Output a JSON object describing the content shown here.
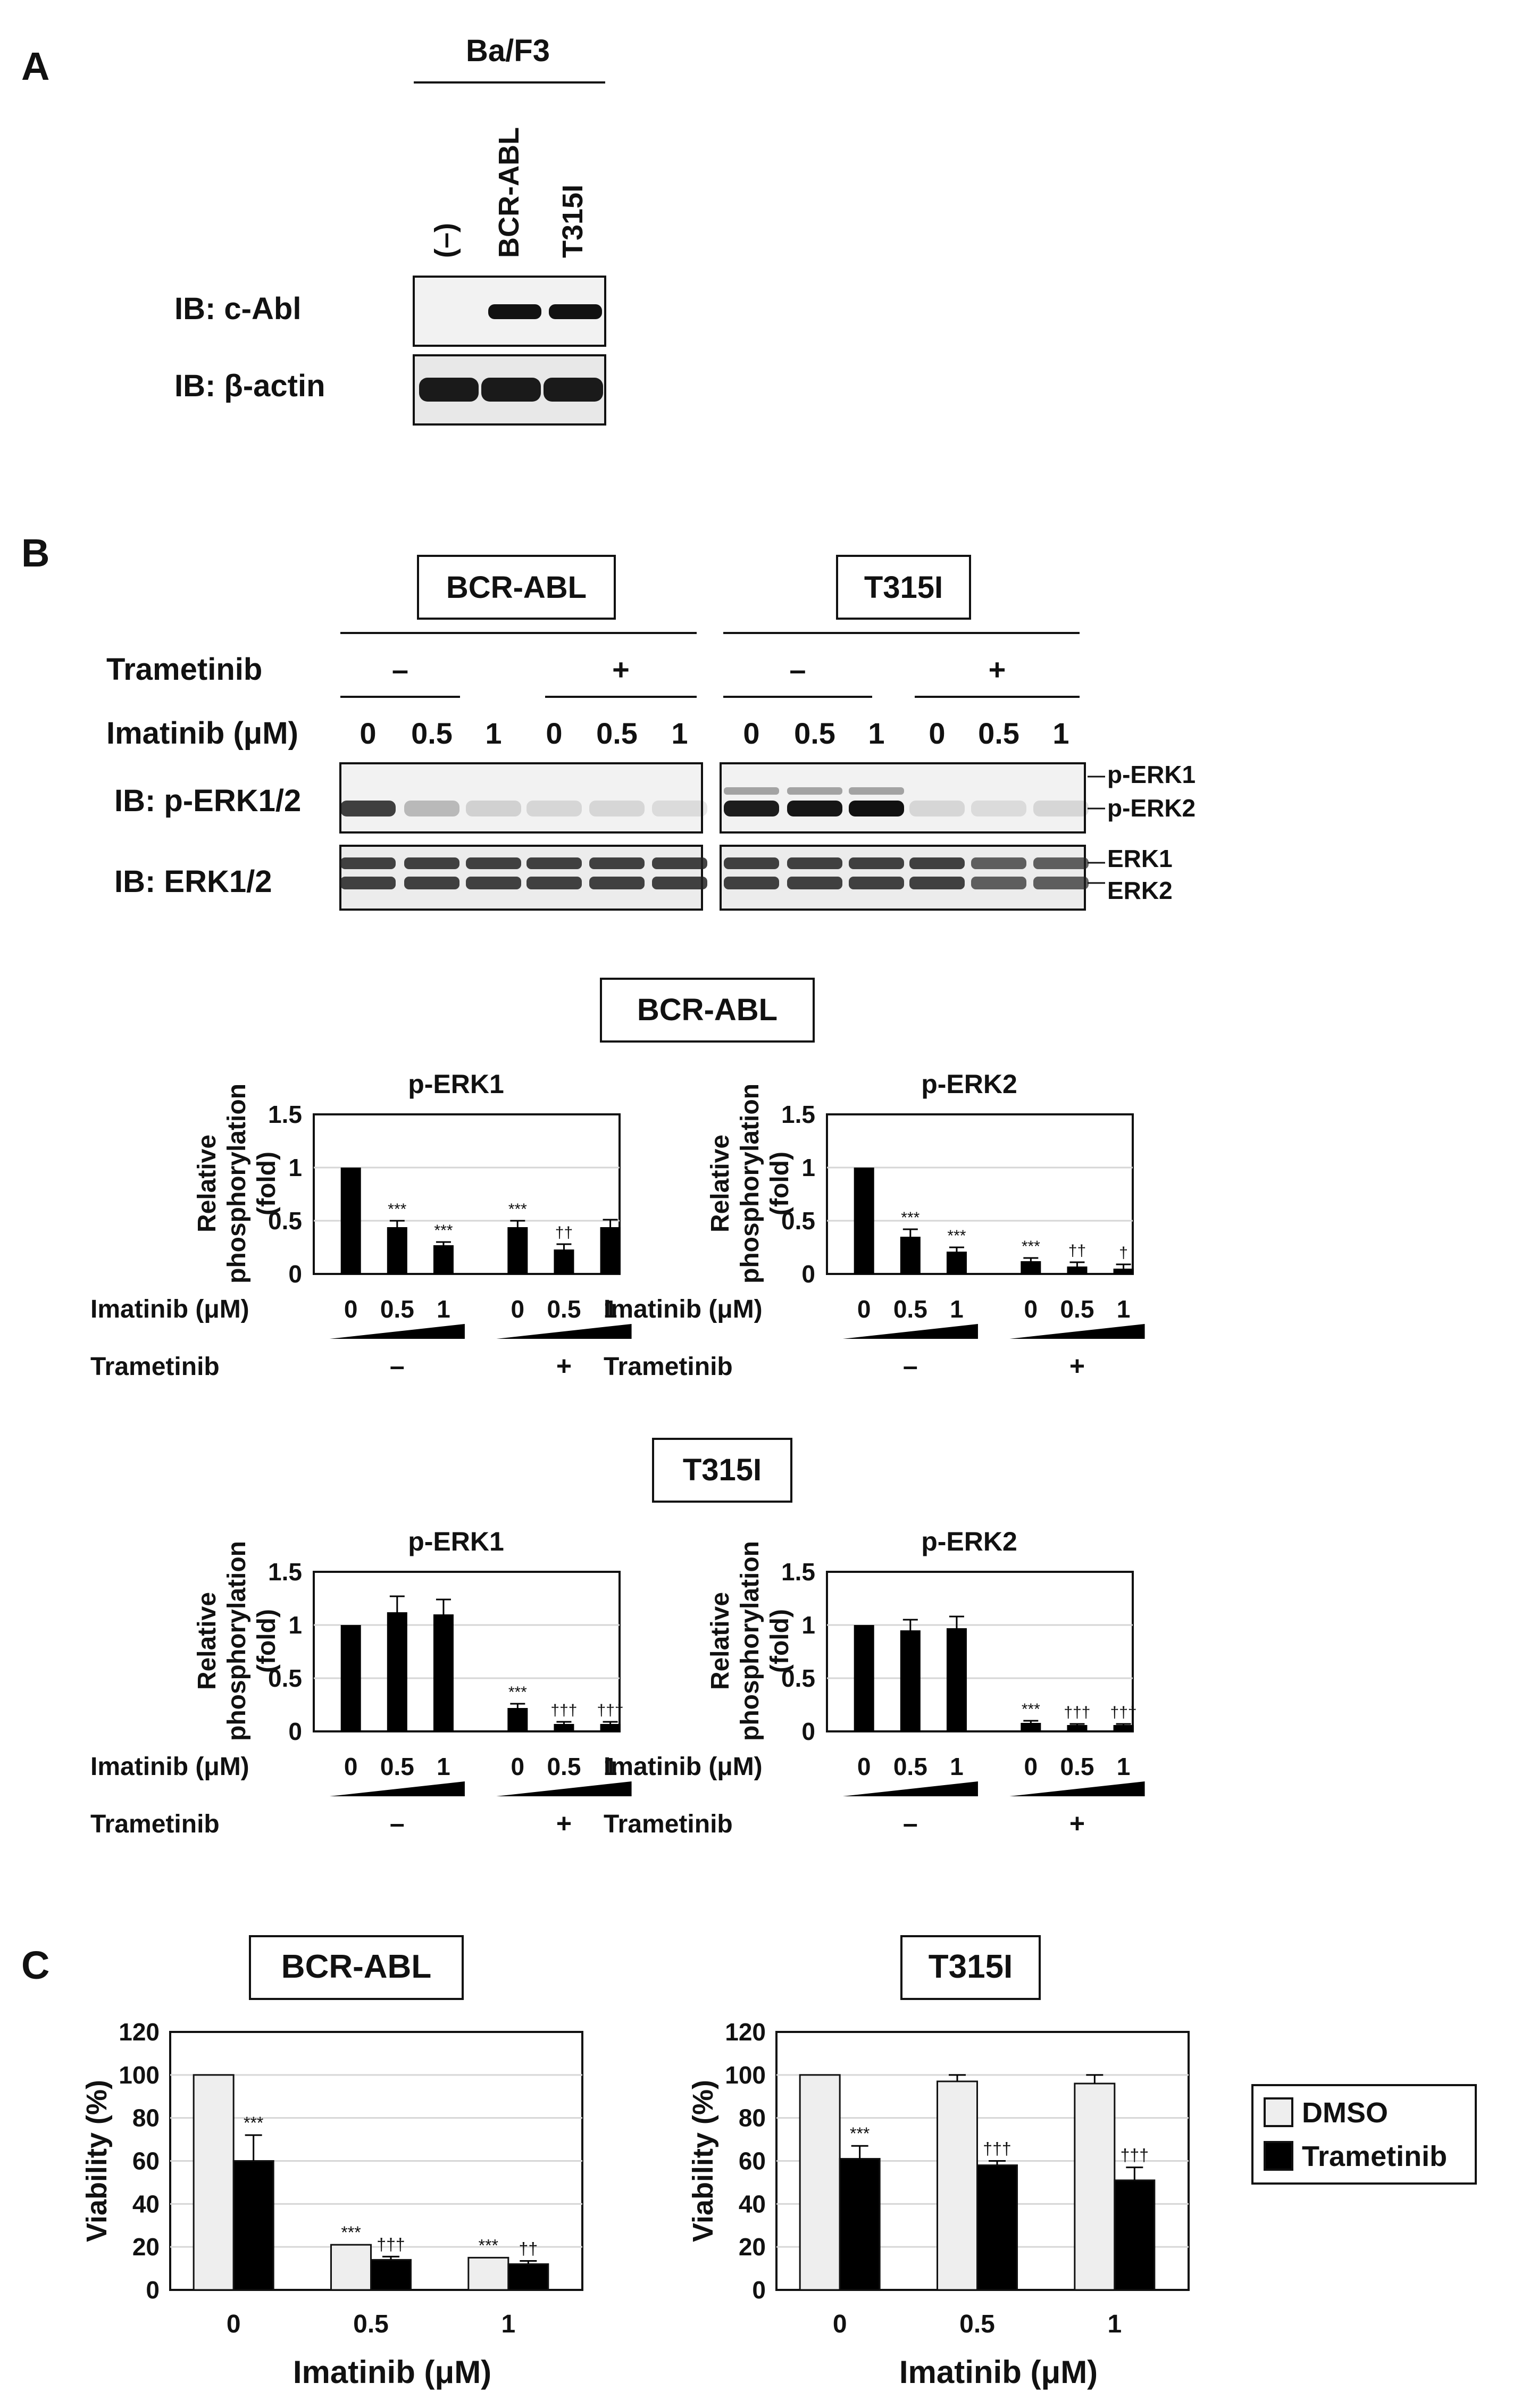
{
  "panel_a": {
    "letter": "A",
    "cell_line": "Ba/F3",
    "lanes": [
      "(–)",
      "BCR-ABL",
      "T315I"
    ],
    "blots": [
      {
        "label": "IB: c-Abl",
        "bands": [
          0,
          1,
          1
        ]
      },
      {
        "label": "IB: β-actin",
        "bands": [
          1,
          1,
          1
        ]
      }
    ]
  },
  "panel_b": {
    "letter": "B",
    "groups": [
      "BCR-ABL",
      "T315I"
    ],
    "row_labels": {
      "trametinib": "Trametinib",
      "imatinib": "Imatinib (μM)"
    },
    "trametinib_signs": [
      "–",
      "+",
      "–",
      "+"
    ],
    "doses": [
      "0",
      "0.5",
      "1"
    ],
    "blots": [
      {
        "label": "IB: p-ERK1/2",
        "band_labels": [
          "p-ERK1",
          "p-ERK2"
        ],
        "intensity": {
          "BCR-ABL": [
            0.8,
            0.25,
            0.15,
            0.12,
            0.12,
            0.1
          ],
          "T315I": [
            0.95,
            0.98,
            1.0,
            0.12,
            0.1,
            0.12
          ]
        }
      },
      {
        "label": "IB: ERK1/2",
        "band_labels": [
          "ERK1",
          "ERK2"
        ],
        "intensity": {
          "BCR-ABL": [
            0.85,
            0.85,
            0.85,
            0.85,
            0.85,
            0.85
          ],
          "T315I": [
            0.85,
            0.85,
            0.85,
            0.85,
            0.7,
            0.7
          ]
        }
      }
    ],
    "quant_sections": [
      {
        "title": "BCR-ABL"
      },
      {
        "title": "T315I"
      }
    ],
    "quant_labels": {
      "ylabel_lines": [
        "Relative",
        "phosphorylation",
        "(fold)"
      ],
      "imatinib": "Imatinib (μM)",
      "trametinib": "Trametinib",
      "trametinib_signs": [
        "–",
        "+"
      ],
      "doses": [
        "0",
        "0.5",
        "1"
      ]
    }
  },
  "panel_c": {
    "letter": "C",
    "legend": [
      "DMSO",
      "Trametinib"
    ],
    "colors": {
      "dmso": "#eeeeee",
      "trametinib": "#000000"
    }
  },
  "chart_data": [
    {
      "type": "bar",
      "title": "p-ERK1",
      "section": "BCR-ABL",
      "categories": [
        "0",
        "0.5",
        "1",
        "0",
        "0.5",
        "1"
      ],
      "values": [
        1.0,
        0.44,
        0.27,
        0.44,
        0.23,
        0.44
      ],
      "errors": [
        0.0,
        0.06,
        0.03,
        0.06,
        0.05,
        0.07
      ],
      "annotations": [
        "",
        "***",
        "***",
        "***",
        "††",
        ""
      ],
      "ylim": [
        0,
        1.5
      ],
      "yticks": [
        "1.5",
        "1",
        "0.5",
        "0"
      ],
      "xlabel": "Imatinib (μM)",
      "ylabel": "Relative phosphorylation (fold)",
      "groups": [
        {
          "name": "Trametinib –"
        },
        {
          "name": "Trametinib +"
        }
      ]
    },
    {
      "type": "bar",
      "title": "p-ERK2",
      "section": "BCR-ABL",
      "categories": [
        "0",
        "0.5",
        "1",
        "0",
        "0.5",
        "1"
      ],
      "values": [
        1.0,
        0.35,
        0.21,
        0.12,
        0.07,
        0.05
      ],
      "errors": [
        0.0,
        0.07,
        0.04,
        0.03,
        0.04,
        0.04
      ],
      "annotations": [
        "",
        "***",
        "***",
        "***",
        "††",
        "†"
      ],
      "ylim": [
        0,
        1.5
      ],
      "yticks": [
        "1.5",
        "1",
        "0.5",
        "0"
      ],
      "xlabel": "Imatinib (μM)",
      "ylabel": "Relative phosphorylation (fold)",
      "groups": [
        {
          "name": "Trametinib –"
        },
        {
          "name": "Trametinib +"
        }
      ]
    },
    {
      "type": "bar",
      "title": "p-ERK1",
      "section": "T315I",
      "categories": [
        "0",
        "0.5",
        "1",
        "0",
        "0.5",
        "1"
      ],
      "values": [
        1.0,
        1.12,
        1.1,
        0.22,
        0.07,
        0.07
      ],
      "errors": [
        0.0,
        0.15,
        0.14,
        0.04,
        0.02,
        0.02
      ],
      "annotations": [
        "",
        "",
        "",
        "***",
        "†††",
        "†††"
      ],
      "ylim": [
        0,
        1.5
      ],
      "yticks": [
        "1.5",
        "1",
        "0.5",
        "0"
      ],
      "xlabel": "Imatinib (μM)",
      "ylabel": "Relative phosphorylation (fold)",
      "groups": [
        {
          "name": "Trametinib –"
        },
        {
          "name": "Trametinib +"
        }
      ]
    },
    {
      "type": "bar",
      "title": "p-ERK2",
      "section": "T315I",
      "categories": [
        "0",
        "0.5",
        "1",
        "0",
        "0.5",
        "1"
      ],
      "values": [
        1.0,
        0.95,
        0.97,
        0.08,
        0.06,
        0.06
      ],
      "errors": [
        0.0,
        0.1,
        0.11,
        0.02,
        0.01,
        0.01
      ],
      "annotations": [
        "",
        "",
        "",
        "***",
        "†††",
        "†††"
      ],
      "ylim": [
        0,
        1.5
      ],
      "yticks": [
        "1.5",
        "1",
        "0.5",
        "0"
      ],
      "xlabel": "Imatinib (μM)",
      "ylabel": "Relative phosphorylation (fold)",
      "groups": [
        {
          "name": "Trametinib –"
        },
        {
          "name": "Trametinib +"
        }
      ]
    },
    {
      "type": "bar",
      "title": "BCR-ABL",
      "categories": [
        "0",
        "0.5",
        "1"
      ],
      "series": [
        {
          "name": "DMSO",
          "values": [
            100,
            21,
            15
          ],
          "errors": [
            0,
            0,
            0
          ],
          "annotations": [
            "",
            "***",
            "***"
          ]
        },
        {
          "name": "Trametinib",
          "values": [
            60,
            14,
            12
          ],
          "errors": [
            12,
            1.5,
            1.5
          ],
          "annotations": [
            "***",
            "†††",
            "††"
          ]
        }
      ],
      "ylim": [
        0,
        120
      ],
      "yticks": [
        "120",
        "100",
        "80",
        "60",
        "40",
        "20",
        "0"
      ],
      "xlabel": "Imatinib (μM)",
      "ylabel": "Viability (%)"
    },
    {
      "type": "bar",
      "title": "T315I",
      "categories": [
        "0",
        "0.5",
        "1"
      ],
      "series": [
        {
          "name": "DMSO",
          "values": [
            100,
            97,
            96
          ],
          "errors": [
            0,
            3,
            4
          ],
          "annotations": [
            "",
            "",
            ""
          ]
        },
        {
          "name": "Trametinib",
          "values": [
            61,
            58,
            51
          ],
          "errors": [
            6,
            2,
            6
          ],
          "annotations": [
            "***",
            "†††",
            "†††"
          ]
        }
      ],
      "ylim": [
        0,
        120
      ],
      "yticks": [
        "120",
        "100",
        "80",
        "60",
        "40",
        "20",
        "0"
      ],
      "xlabel": "Imatinib (μM)",
      "ylabel": "Viability (%)"
    }
  ]
}
